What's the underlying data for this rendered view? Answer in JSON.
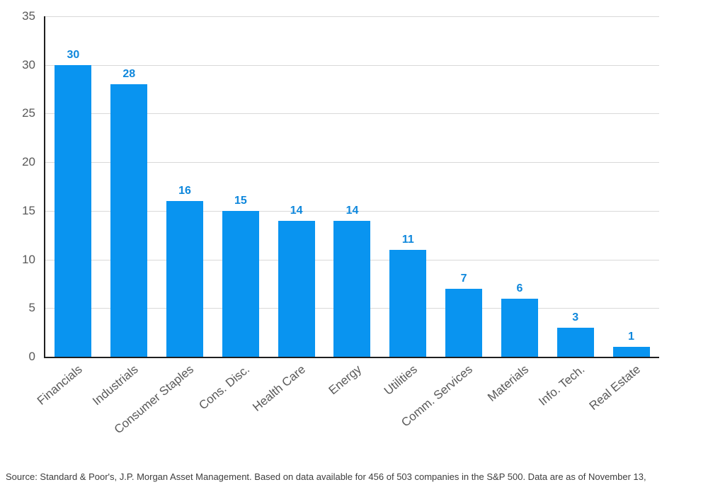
{
  "chart_data": {
    "type": "bar",
    "categories": [
      "Financials",
      "Industrials",
      "Consumer Staples",
      "Cons. Disc.",
      "Health Care",
      "Energy",
      "Utilities",
      "Comm. Services",
      "Materials",
      "Info. Tech.",
      "Real Estate"
    ],
    "values": [
      30,
      28,
      16,
      15,
      14,
      14,
      11,
      7,
      6,
      3,
      1
    ],
    "ylim": [
      0,
      35
    ],
    "yticks": [
      0,
      5,
      10,
      15,
      20,
      25,
      30,
      35
    ],
    "grid": true,
    "legend": "none",
    "bar_color": "#0994f0",
    "value_label_color": "#0e87dc",
    "axis_text_color": "#595959",
    "gridline_color": "#d9d9d9",
    "axis_line_color": "#1f1f1f"
  },
  "footer": {
    "source_text": "Source: Standard & Poor's, J.P. Morgan Asset Management. Based on data available for 456 of 503 companies in the S&P 500. Data are as of November 13,"
  }
}
